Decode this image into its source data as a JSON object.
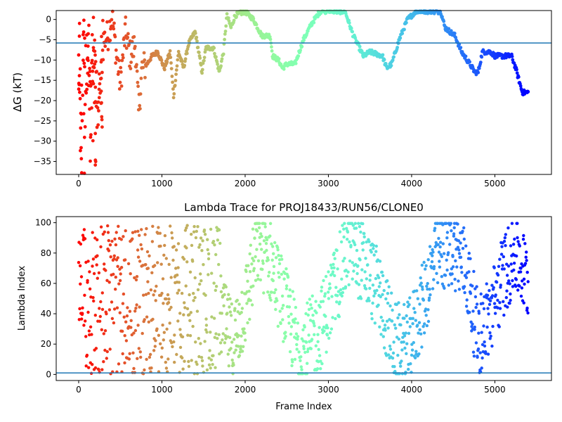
{
  "chart_data": [
    {
      "type": "scatter",
      "title": "",
      "xlabel": "",
      "ylabel": "ΔG (kT)",
      "xlim": [
        -270,
        5680
      ],
      "ylim": [
        -38.2,
        2.2
      ],
      "xticks": [
        0,
        1000,
        2000,
        3000,
        4000,
        5000
      ],
      "yticks": [
        0,
        -5,
        -10,
        -15,
        -20,
        -25,
        -30,
        -35
      ],
      "hline": -5.8,
      "hline_color": "#1f77b4",
      "colormap": "rainbow (frame index: red at start -> violet at end)",
      "grid": false,
      "trajectory_keypoints": [
        [
          0,
          -10
        ],
        [
          20,
          -25
        ],
        [
          35,
          -37
        ],
        [
          60,
          -5
        ],
        [
          80,
          -20
        ],
        [
          100,
          -12
        ],
        [
          150,
          -15
        ],
        [
          200,
          -7
        ],
        [
          230,
          -25
        ],
        [
          260,
          -16
        ],
        [
          300,
          -5
        ],
        [
          350,
          -4
        ],
        [
          400,
          1
        ],
        [
          450,
          -8
        ],
        [
          500,
          -16
        ],
        [
          560,
          -3
        ],
        [
          620,
          -9
        ],
        [
          680,
          -6
        ],
        [
          720,
          -23
        ],
        [
          760,
          -12
        ],
        [
          820,
          -11
        ],
        [
          880,
          -9
        ],
        [
          950,
          -8
        ],
        [
          1030,
          -12
        ],
        [
          1100,
          -8
        ],
        [
          1140,
          -19
        ],
        [
          1200,
          -8
        ],
        [
          1260,
          -12
        ],
        [
          1320,
          -6
        ],
        [
          1400,
          -3
        ],
        [
          1450,
          -9
        ],
        [
          1480,
          -13
        ],
        [
          1530,
          -7
        ],
        [
          1620,
          -7
        ],
        [
          1690,
          -13
        ],
        [
          1740,
          -8
        ],
        [
          1780,
          1
        ],
        [
          1830,
          -2
        ],
        [
          1880,
          1
        ],
        [
          2000,
          2
        ],
        [
          2100,
          0
        ],
        [
          2200,
          -4
        ],
        [
          2300,
          -4
        ],
        [
          2330,
          -9
        ],
        [
          2400,
          -10
        ],
        [
          2450,
          -12
        ],
        [
          2500,
          -11
        ],
        [
          2600,
          -11
        ],
        [
          2700,
          -5
        ],
        [
          2800,
          -1
        ],
        [
          2900,
          2
        ],
        [
          3000,
          2
        ],
        [
          3200,
          2
        ],
        [
          3300,
          -4
        ],
        [
          3420,
          -9
        ],
        [
          3500,
          -8
        ],
        [
          3650,
          -9
        ],
        [
          3700,
          -12
        ],
        [
          3760,
          -11
        ],
        [
          3850,
          -5
        ],
        [
          3950,
          0
        ],
        [
          4050,
          2
        ],
        [
          4200,
          2
        ],
        [
          4350,
          2
        ],
        [
          4400,
          -2
        ],
        [
          4520,
          -4
        ],
        [
          4600,
          -8
        ],
        [
          4700,
          -11
        ],
        [
          4760,
          -13
        ],
        [
          4800,
          -13
        ],
        [
          4850,
          -8
        ],
        [
          4950,
          -8
        ],
        [
          5000,
          -9
        ],
        [
          5200,
          -9
        ],
        [
          5250,
          -12
        ],
        [
          5330,
          -18
        ],
        [
          5400,
          -18
        ]
      ]
    },
    {
      "type": "scatter",
      "title": "Lambda Trace for PROJ18433/RUN56/CLONE0",
      "xlabel": "Frame Index",
      "ylabel": "Lambda Index",
      "xlim": [
        -270,
        5680
      ],
      "ylim": [
        -4,
        104
      ],
      "xticks": [
        0,
        1000,
        2000,
        3000,
        4000,
        5000
      ],
      "yticks": [
        0,
        20,
        40,
        60,
        80,
        100
      ],
      "hline": 1,
      "hline_color": "#1f77b4",
      "colormap": "rainbow (frame index: red at start -> violet at end)",
      "grid": false,
      "center_keypoints": [
        [
          0,
          50
        ],
        [
          500,
          50
        ],
        [
          1000,
          50
        ],
        [
          1500,
          50
        ],
        [
          1700,
          40
        ],
        [
          1850,
          20
        ],
        [
          2000,
          45
        ],
        [
          2150,
          85
        ],
        [
          2300,
          75
        ],
        [
          2450,
          50
        ],
        [
          2650,
          15
        ],
        [
          2900,
          30
        ],
        [
          3100,
          60
        ],
        [
          3250,
          85
        ],
        [
          3400,
          75
        ],
        [
          3600,
          55
        ],
        [
          3800,
          20
        ],
        [
          3950,
          20
        ],
        [
          4100,
          40
        ],
        [
          4300,
          80
        ],
        [
          4500,
          85
        ],
        [
          4650,
          70
        ],
        [
          4800,
          25
        ],
        [
          4950,
          40
        ],
        [
          5100,
          65
        ],
        [
          5250,
          80
        ],
        [
          5400,
          60
        ]
      ]
    }
  ]
}
